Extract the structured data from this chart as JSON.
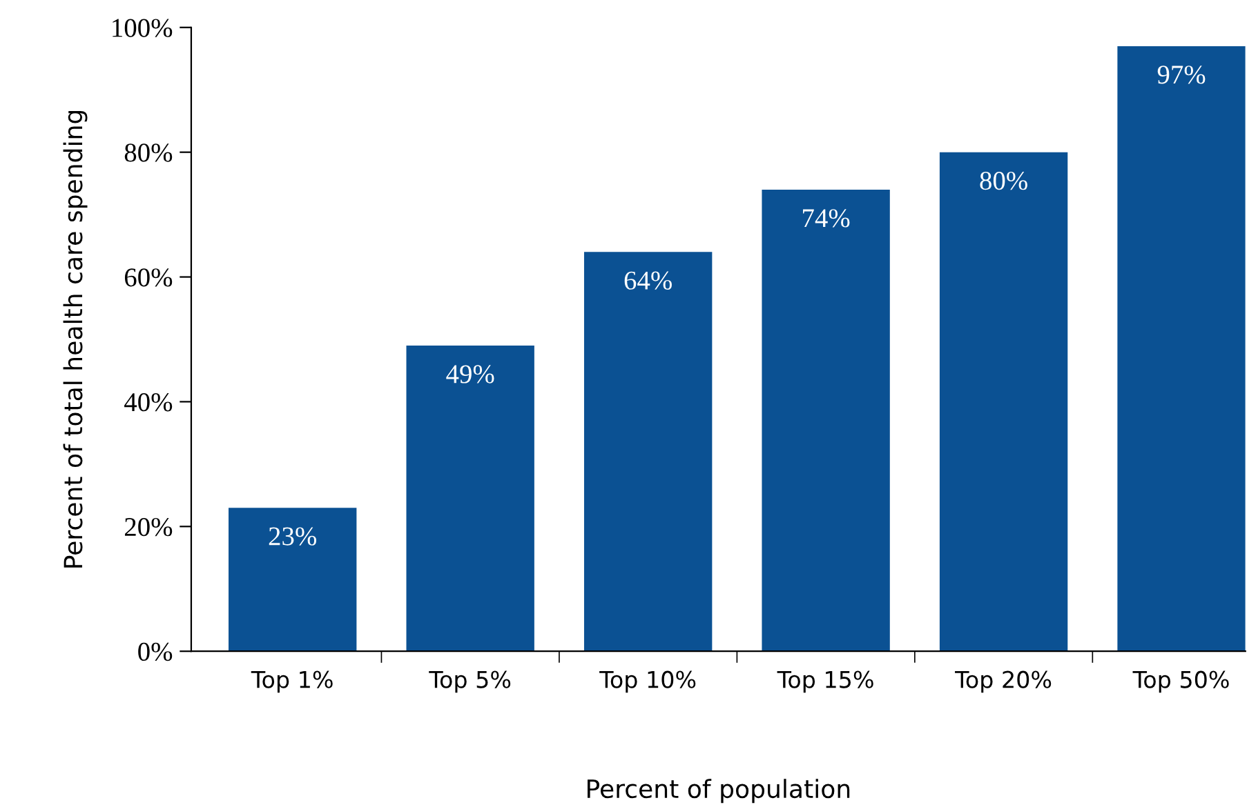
{
  "chart_data": {
    "type": "bar",
    "xlabel": "Percent of population",
    "ylabel": "Percent of total health care spending",
    "categories": [
      "Top 1%",
      "Top 5%",
      "Top 10%",
      "Top 15%",
      "Top 20%",
      "Top 50%"
    ],
    "values": [
      23,
      49,
      64,
      74,
      80,
      97
    ],
    "value_labels": [
      "23%",
      "49%",
      "64%",
      "74%",
      "80%",
      "97%"
    ],
    "color": "#0b5193",
    "ylim": [
      0,
      100
    ],
    "yticks": [
      {
        "value": 0,
        "label": "0%"
      },
      {
        "value": 20,
        "label": "20%"
      },
      {
        "value": 40,
        "label": "40%"
      },
      {
        "value": 60,
        "label": "60%"
      },
      {
        "value": 80,
        "label": "80%"
      },
      {
        "value": 100,
        "label": "100%"
      }
    ],
    "grid": false,
    "legend": false
  }
}
